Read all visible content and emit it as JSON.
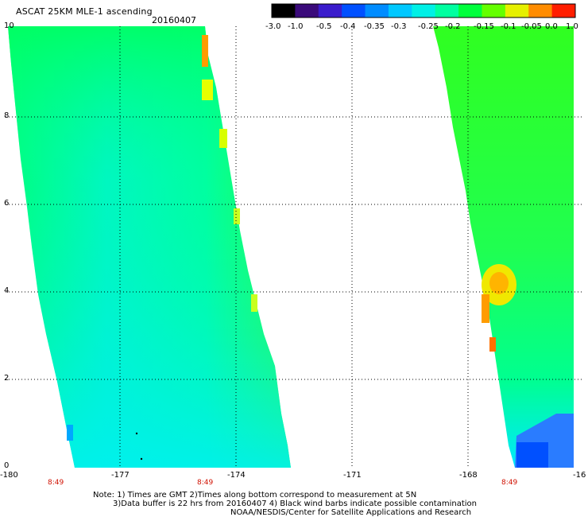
{
  "header": {
    "title": "ASCAT 25KM MLE-1 ascending",
    "date": "20160407"
  },
  "colorbar": {
    "labels": [
      "-3.0",
      "-1.0",
      "-0.5",
      "-0.4",
      "-0.35",
      "-0.3",
      "-0.25",
      "-0.2",
      "-0.15",
      "-0.1",
      "-0.05",
      "0.0",
      "1.0"
    ],
    "colors": [
      "#000000",
      "#3a0a7a",
      "#3a1ccc",
      "#0050ff",
      "#008cff",
      "#00c8ff",
      "#00f0e6",
      "#00ffa0",
      "#00ff3c",
      "#64ff00",
      "#e6f000",
      "#ff8c00",
      "#ff1e00"
    ]
  },
  "axes": {
    "y_ticks": [
      "10",
      "8",
      "6",
      "4",
      "2",
      "0"
    ],
    "x_ticks": [
      "-180",
      "-177",
      "-174",
      "-171",
      "-168",
      "-16"
    ]
  },
  "swath_times": [
    "8:49",
    "8:49",
    "8:49"
  ],
  "footer": {
    "line1": "Note: 1) Times are GMT 2)Times along bottom correspond to measurement at 5N",
    "line2": "3)Data buffer is 22 hrs from 20160407 4) Black wind barbs indicate possible contamination",
    "line3": "NOAA/NESDIS/Center for Satellite Applications and Research"
  }
}
